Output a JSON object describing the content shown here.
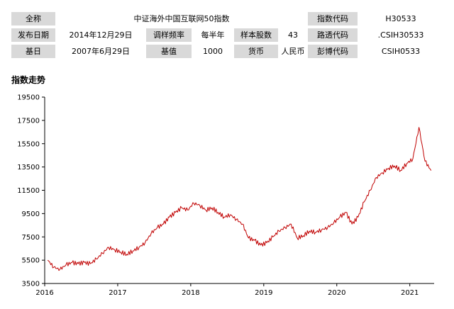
{
  "info_table": {
    "row1": {
      "label1": "全称",
      "value1": "中证海外中国互联网50指数",
      "label2": "指数代码",
      "value2": "H30533"
    },
    "row2": {
      "label1": "发布日期",
      "value1": "2014年12月29日",
      "label2": "调样频率",
      "value2": "每半年",
      "label3": "样本股数",
      "value3": "43",
      "label4": "路透代码",
      "value4": ".CSIH30533"
    },
    "row3": {
      "label1": "基日",
      "value1": "2007年6月29日",
      "label2": "基值",
      "value2": "1000",
      "label3": "货币",
      "value3": "人民币",
      "label4": "彭博代码",
      "value4": "CSIH0533"
    }
  },
  "section_title": "指数走势",
  "chart_data": {
    "type": "line",
    "title": "",
    "xlabel": "",
    "ylabel": "",
    "line_color": "#c00000",
    "grid": false,
    "xlim": [
      "2016-01",
      "2021-04"
    ],
    "ylim": [
      3500,
      19500
    ],
    "x_ticks": [
      "2016",
      "2017",
      "2018",
      "2019",
      "2020",
      "2021"
    ],
    "y_ticks": [
      3500,
      5500,
      7500,
      9500,
      11500,
      13500,
      15500,
      17500,
      19500
    ],
    "series": [
      {
        "x": [
          "2016-01",
          "2016-02",
          "2016-03",
          "2016-04",
          "2016-05",
          "2016-06",
          "2016-07",
          "2016-08",
          "2016-09",
          "2016-10",
          "2016-11",
          "2016-12",
          "2017-01",
          "2017-02",
          "2017-03",
          "2017-04",
          "2017-05",
          "2017-06",
          "2017-07",
          "2017-08",
          "2017-09",
          "2017-10",
          "2017-11",
          "2017-12",
          "2018-01",
          "2018-02",
          "2018-03",
          "2018-04",
          "2018-05",
          "2018-06",
          "2018-07",
          "2018-08",
          "2018-09",
          "2018-10",
          "2018-11",
          "2018-12",
          "2019-01",
          "2019-02",
          "2019-03",
          "2019-04",
          "2019-05",
          "2019-06",
          "2019-07",
          "2019-08",
          "2019-09",
          "2019-10",
          "2019-11",
          "2019-12",
          "2020-01",
          "2020-02",
          "2020-03",
          "2020-04",
          "2020-05",
          "2020-06",
          "2020-07",
          "2020-08",
          "2020-09",
          "2020-10",
          "2020-11",
          "2020-12",
          "2021-01",
          "2021-02",
          "2021-03",
          "2021-04"
        ],
        "values": [
          5500,
          4900,
          4700,
          5100,
          5300,
          5200,
          5300,
          5200,
          5600,
          6100,
          6600,
          6400,
          6200,
          6000,
          6300,
          6600,
          7000,
          7800,
          8300,
          8600,
          9200,
          9600,
          10000,
          9800,
          10400,
          10200,
          9800,
          10000,
          9600,
          9200,
          9400,
          9000,
          8600,
          7400,
          7200,
          6800,
          7000,
          7500,
          8000,
          8300,
          8600,
          7400,
          7600,
          8000,
          7900,
          8100,
          8300,
          8700,
          9200,
          9600,
          8600,
          9200,
          10500,
          11500,
          12600,
          13000,
          13400,
          13600,
          13200,
          13800,
          14200,
          16900,
          14000,
          13200
        ]
      }
    ]
  }
}
